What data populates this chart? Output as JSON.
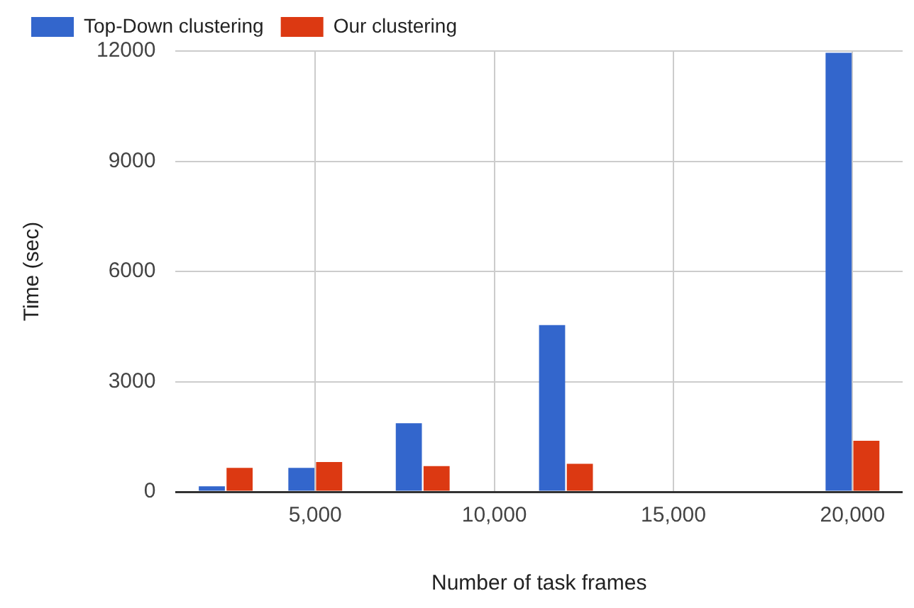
{
  "chart_data": {
    "type": "bar",
    "xlabel": "Number of task frames",
    "ylabel": "Time (sec)",
    "x": [
      2500,
      5000,
      8000,
      12000,
      20000
    ],
    "series": [
      {
        "name": "Top-Down clustering",
        "color": "#3366cc",
        "values": [
          150,
          650,
          1865,
          4540,
          11950
        ]
      },
      {
        "name": "Our clustering",
        "color": "#dc3912",
        "values": [
          650,
          810,
          700,
          760,
          1390
        ]
      }
    ],
    "xlim": [
      1100,
      21400
    ],
    "xticks": [
      {
        "value": 5000,
        "label": "5,000"
      },
      {
        "value": 10000,
        "label": "10,000"
      },
      {
        "value": 15000,
        "label": "15,000"
      },
      {
        "value": 20000,
        "label": "20,000"
      }
    ],
    "ylim": [
      0,
      12000
    ],
    "yticks": [
      0,
      3000,
      6000,
      9000,
      12000
    ],
    "grid": true,
    "legend": "top left"
  }
}
